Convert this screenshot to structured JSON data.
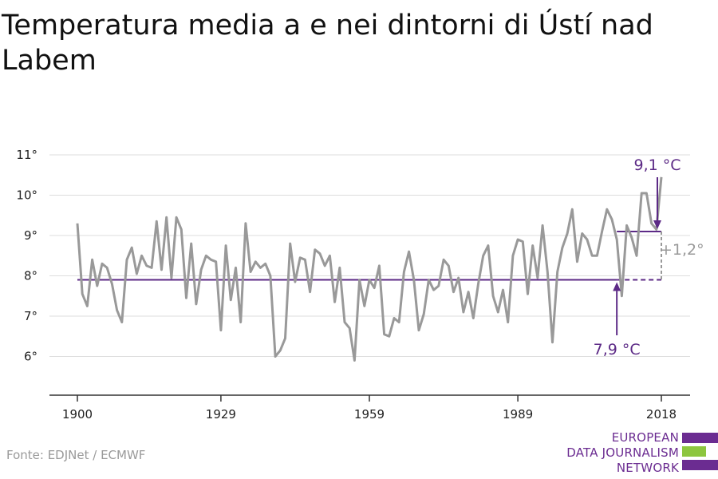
{
  "title": "Temperatura media a e nei dintorni di Ústí nad Labem",
  "source": "Fonte: EDJNet / ECMWF",
  "logo": {
    "line1": "EUROPEAN",
    "line2": "DATA JOURNALISM",
    "line3": "NETWORK"
  },
  "colors": {
    "series": "#999999",
    "reference": "#5c2a86",
    "grid": "#dddddd",
    "logo_purple": "#6b2c91",
    "logo_green": "#8dc63f"
  },
  "chart_data": {
    "type": "line",
    "title": "Temperatura media a e nei dintorni di Ústí nad Labem",
    "xlabel": "",
    "ylabel": "",
    "xlim": [
      1900,
      2018
    ],
    "ylim": [
      5,
      11
    ],
    "x_ticks": [
      1900,
      1929,
      1959,
      1989,
      2018
    ],
    "x_tick_labels": [
      "1900",
      "1929",
      "1959",
      "1989",
      "2018"
    ],
    "y_ticks": [
      6,
      7,
      8,
      9,
      10,
      11
    ],
    "y_tick_labels": [
      "6°",
      "7°",
      "8°",
      "9°",
      "10°",
      "11°"
    ],
    "grid": true,
    "series": [
      {
        "x_start": 1900,
        "x_step": 1,
        "values": [
          9.3,
          7.55,
          7.25,
          8.4,
          7.75,
          8.3,
          8.2,
          7.8,
          7.15,
          6.85,
          8.4,
          8.7,
          8.05,
          8.5,
          8.25,
          8.2,
          9.35,
          8.15,
          9.45,
          7.95,
          9.45,
          9.15,
          7.45,
          8.8,
          7.3,
          8.15,
          8.5,
          8.4,
          8.35,
          6.65,
          8.75,
          7.4,
          8.2,
          6.85,
          9.3,
          8.1,
          8.35,
          8.2,
          8.3,
          8.0,
          6.0,
          6.15,
          6.45,
          8.8,
          7.85,
          8.45,
          8.4,
          7.6,
          8.65,
          8.55,
          8.25,
          8.5,
          7.35,
          8.2,
          6.85,
          6.7,
          5.9,
          7.9,
          7.25,
          7.9,
          7.7,
          8.25,
          6.55,
          6.5,
          6.95,
          6.85,
          8.1,
          8.6,
          7.9,
          6.65,
          7.05,
          7.9,
          7.65,
          7.75,
          8.4,
          8.25,
          7.6,
          7.95,
          7.1,
          7.6,
          6.95,
          7.8,
          8.5,
          8.75,
          7.5,
          7.1,
          7.65,
          6.85,
          8.5,
          8.9,
          8.85,
          7.55,
          8.75,
          7.95,
          9.25,
          8.1,
          6.35,
          8.1,
          8.7,
          9.05,
          9.65,
          8.35,
          9.05,
          8.9,
          8.5,
          8.5,
          9.1,
          9.65,
          9.4,
          8.9,
          7.5,
          9.25,
          8.95,
          8.5,
          10.05,
          10.05,
          9.3,
          9.15,
          10.45
        ]
      }
    ],
    "reference_lines": [
      {
        "label": "7,9 °C",
        "value": 7.9,
        "x_from": 1900,
        "x_to": 2018
      },
      {
        "label": "9,1 °C",
        "value": 9.1,
        "x_from": 2009,
        "x_to": 2018
      }
    ],
    "difference_label": "+1,2°"
  }
}
